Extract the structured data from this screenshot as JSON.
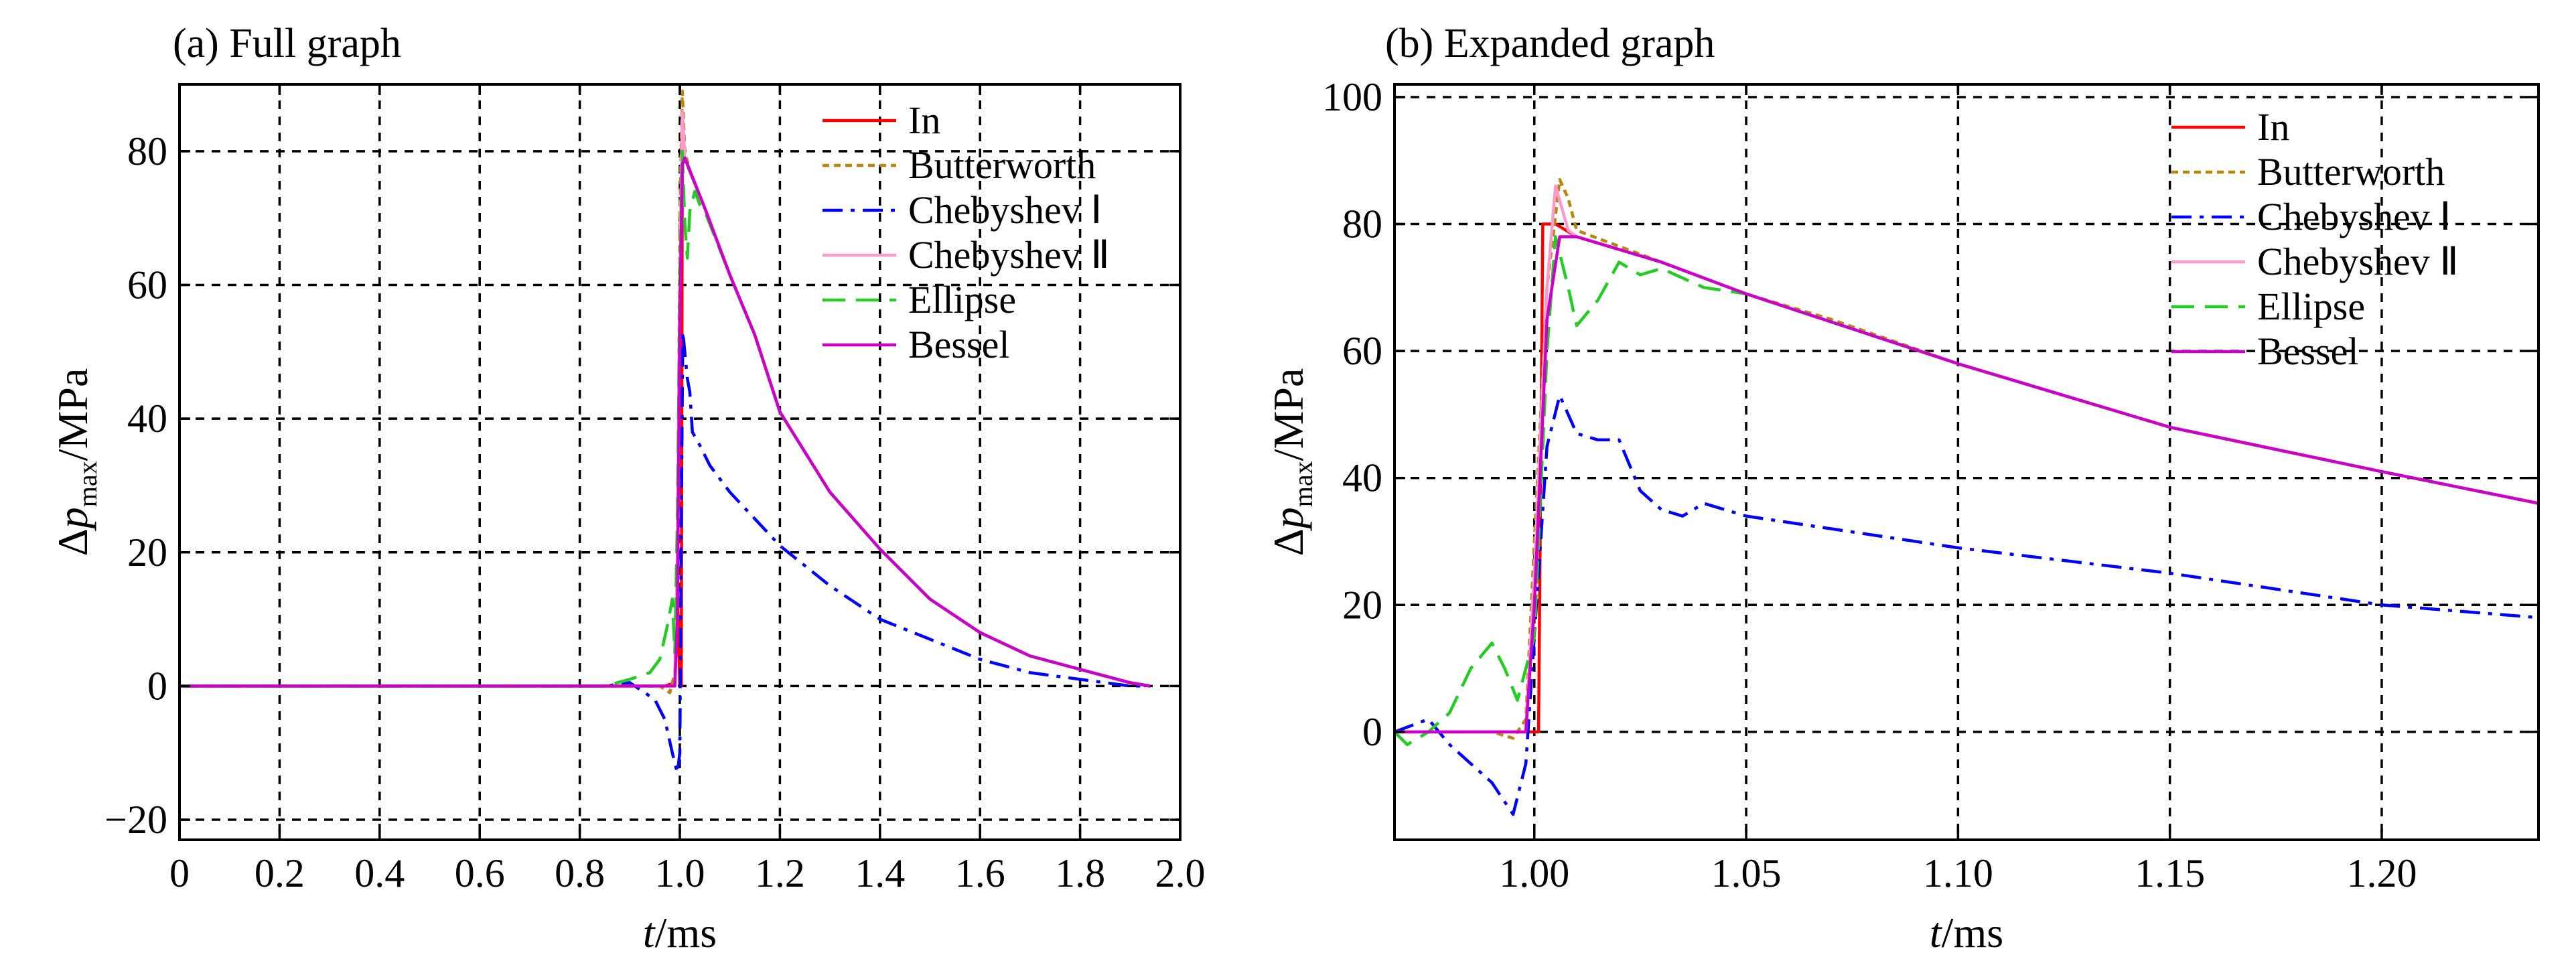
{
  "chart_data": [
    {
      "type": "line",
      "title": "(a) Full graph",
      "xlabel": "t/ms",
      "ylabel": "Δp_max/MPa",
      "xlim": [
        0,
        2.0
      ],
      "ylim": [
        -23,
        90
      ],
      "xticks": [
        0,
        0.2,
        0.4,
        0.6,
        0.8,
        1.0,
        1.2,
        1.4,
        1.6,
        1.8,
        2.0
      ],
      "xtick_labels": [
        "0",
        "0.2",
        "0.4",
        "0.6",
        "0.8",
        "1.0",
        "1.2",
        "1.4",
        "1.6",
        "1.8",
        "2.0"
      ],
      "yticks": [
        -20,
        0,
        20,
        40,
        60,
        80
      ],
      "ytick_labels": [
        "−20",
        "0",
        "20",
        "40",
        "60",
        "80"
      ],
      "grid": true,
      "legend_position": "top-right",
      "series": [
        {
          "name": "In",
          "color": "#ff0000",
          "dash": "solid",
          "points": [
            [
              0,
              0
            ],
            [
              0.9,
              0
            ],
            [
              0.97,
              0
            ],
            [
              0.99,
              0.5
            ],
            [
              0.995,
              15
            ],
            [
              1.0,
              0
            ],
            [
              1.003,
              0
            ],
            [
              1.005,
              80
            ],
            [
              1.02,
              77
            ],
            [
              1.05,
              71.5
            ],
            [
              1.1,
              61.5
            ],
            [
              1.15,
              52.5
            ],
            [
              1.2,
              41
            ],
            [
              1.3,
              29
            ],
            [
              1.4,
              20.5
            ],
            [
              1.5,
              13
            ],
            [
              1.6,
              8
            ],
            [
              1.7,
              4.5
            ],
            [
              1.8,
              2.5
            ],
            [
              1.9,
              0.5
            ],
            [
              1.94,
              0
            ]
          ]
        },
        {
          "name": "Butterworth",
          "color": "#b8860b",
          "dash": "dotted",
          "points": [
            [
              0,
              0
            ],
            [
              0.9,
              0
            ],
            [
              0.96,
              0
            ],
            [
              0.98,
              -1
            ],
            [
              0.99,
              2
            ],
            [
              0.995,
              10
            ],
            [
              1.0,
              70
            ],
            [
              1.005,
              89
            ],
            [
              1.01,
              80
            ],
            [
              1.02,
              77
            ],
            [
              1.05,
              71.5
            ],
            [
              1.1,
              61.5
            ],
            [
              1.15,
              52.5
            ],
            [
              1.2,
              41
            ],
            [
              1.3,
              29
            ],
            [
              1.4,
              20.5
            ],
            [
              1.5,
              13
            ],
            [
              1.6,
              8
            ],
            [
              1.7,
              4.5
            ],
            [
              1.8,
              2.5
            ],
            [
              1.9,
              0.5
            ],
            [
              1.94,
              0
            ]
          ]
        },
        {
          "name": "Chebyshev Ⅰ",
          "color": "#0000ff",
          "dash": "dashdot",
          "points": [
            [
              0,
              0
            ],
            [
              0.85,
              0
            ],
            [
              0.9,
              0.5
            ],
            [
              0.95,
              -2
            ],
            [
              0.97,
              -5
            ],
            [
              0.985,
              -10
            ],
            [
              0.995,
              -13
            ],
            [
              1.0,
              -10
            ],
            [
              1.003,
              25
            ],
            [
              1.006,
              53
            ],
            [
              1.015,
              46
            ],
            [
              1.02,
              44
            ],
            [
              1.025,
              38
            ],
            [
              1.04,
              36
            ],
            [
              1.06,
              33
            ],
            [
              1.1,
              29
            ],
            [
              1.15,
              25
            ],
            [
              1.2,
              21
            ],
            [
              1.3,
              15
            ],
            [
              1.4,
              10
            ],
            [
              1.5,
              7
            ],
            [
              1.6,
              4
            ],
            [
              1.7,
              2
            ],
            [
              1.8,
              1
            ],
            [
              1.9,
              0
            ],
            [
              1.94,
              0
            ]
          ]
        },
        {
          "name": "Chebyshev Ⅱ",
          "color": "#ff99cc",
          "dash": "solid",
          "points": [
            [
              0,
              0
            ],
            [
              0.95,
              0
            ],
            [
              0.99,
              0
            ],
            [
              0.995,
              20
            ],
            [
              1.0,
              60
            ],
            [
              1.005,
              86
            ],
            [
              1.01,
              79
            ],
            [
              1.05,
              71.5
            ],
            [
              1.1,
              61.5
            ],
            [
              1.15,
              52.5
            ],
            [
              1.2,
              41
            ],
            [
              1.3,
              29
            ],
            [
              1.4,
              20.5
            ],
            [
              1.5,
              13
            ],
            [
              1.6,
              8
            ],
            [
              1.7,
              4.5
            ],
            [
              1.8,
              2.5
            ],
            [
              1.9,
              0.5
            ],
            [
              1.94,
              0
            ]
          ]
        },
        {
          "name": "Ellipse",
          "color": "#22cc22",
          "dash": "longdash",
          "points": [
            [
              0,
              0
            ],
            [
              0.85,
              0
            ],
            [
              0.9,
              1
            ],
            [
              0.94,
              2
            ],
            [
              0.96,
              4
            ],
            [
              0.975,
              9
            ],
            [
              0.985,
              13
            ],
            [
              0.99,
              5
            ],
            [
              0.995,
              25
            ],
            [
              1.0,
              60
            ],
            [
              1.005,
              80
            ],
            [
              1.01,
              69
            ],
            [
              1.015,
              64
            ],
            [
              1.02,
              71
            ],
            [
              1.03,
              74
            ],
            [
              1.04,
              72
            ],
            [
              1.05,
              71
            ],
            [
              1.1,
              61.5
            ],
            [
              1.15,
              52.5
            ],
            [
              1.2,
              41
            ],
            [
              1.3,
              29
            ],
            [
              1.4,
              20.5
            ],
            [
              1.5,
              13
            ],
            [
              1.6,
              8
            ],
            [
              1.7,
              4.5
            ],
            [
              1.8,
              2.5
            ],
            [
              1.9,
              0.5
            ],
            [
              1.94,
              0
            ]
          ]
        },
        {
          "name": "Bessel",
          "color": "#cc00cc",
          "dash": "solid",
          "points": [
            [
              0,
              0
            ],
            [
              0.95,
              0
            ],
            [
              0.99,
              0
            ],
            [
              0.995,
              10
            ],
            [
              1.0,
              55
            ],
            [
              1.005,
              78
            ],
            [
              1.01,
              79
            ],
            [
              1.05,
              71.5
            ],
            [
              1.1,
              61.5
            ],
            [
              1.15,
              52.5
            ],
            [
              1.2,
              41
            ],
            [
              1.3,
              29
            ],
            [
              1.4,
              20.5
            ],
            [
              1.5,
              13
            ],
            [
              1.6,
              8
            ],
            [
              1.7,
              4.5
            ],
            [
              1.8,
              2.5
            ],
            [
              1.9,
              0.5
            ],
            [
              1.94,
              0
            ]
          ]
        }
      ]
    },
    {
      "type": "line",
      "title": "(b) Expanded graph",
      "xlabel": "t/ms",
      "ylabel": "Δp_max/MPa",
      "xlim": [
        0.967,
        1.237
      ],
      "ylim": [
        -17,
        102
      ],
      "xticks": [
        1.0,
        1.05,
        1.1,
        1.15,
        1.2
      ],
      "xtick_labels": [
        "1.00",
        "1.05",
        "1.10",
        "1.15",
        "1.20"
      ],
      "yticks": [
        0,
        20,
        40,
        60,
        80,
        100
      ],
      "ytick_labels": [
        "0",
        "20",
        "40",
        "60",
        "80",
        "100"
      ],
      "grid": true,
      "legend_position": "top-right",
      "series": [
        {
          "name": "In",
          "color": "#ff0000",
          "dash": "solid",
          "points": [
            [
              0.967,
              0
            ],
            [
              0.998,
              0
            ],
            [
              1.001,
              0
            ],
            [
              1.002,
              80
            ],
            [
              1.005,
              80
            ],
            [
              1.01,
              78
            ],
            [
              1.03,
              74
            ],
            [
              1.05,
              69
            ],
            [
              1.1,
              58
            ],
            [
              1.15,
              48
            ],
            [
              1.2,
              41
            ],
            [
              1.237,
              36
            ]
          ]
        },
        {
          "name": "Butterworth",
          "color": "#b8860b",
          "dash": "dotted",
          "points": [
            [
              0.967,
              0
            ],
            [
              0.98,
              0
            ],
            [
              0.99,
              0
            ],
            [
              0.995,
              -1
            ],
            [
              0.998,
              2
            ],
            [
              1.0,
              30
            ],
            [
              1.003,
              70
            ],
            [
              1.006,
              87
            ],
            [
              1.008,
              84
            ],
            [
              1.01,
              79
            ],
            [
              1.03,
              74
            ],
            [
              1.05,
              69
            ],
            [
              1.07,
              65
            ],
            [
              1.1,
              58
            ],
            [
              1.15,
              48
            ],
            [
              1.2,
              41
            ],
            [
              1.237,
              36
            ]
          ]
        },
        {
          "name": "Chebyshev Ⅰ",
          "color": "#0000ff",
          "dash": "dashdot",
          "points": [
            [
              0.967,
              0
            ],
            [
              0.975,
              2
            ],
            [
              0.98,
              -2
            ],
            [
              0.985,
              -5
            ],
            [
              0.99,
              -8
            ],
            [
              0.995,
              -13
            ],
            [
              0.998,
              -5
            ],
            [
              1.0,
              15
            ],
            [
              1.003,
              45
            ],
            [
              1.006,
              53
            ],
            [
              1.01,
              47
            ],
            [
              1.015,
              46
            ],
            [
              1.02,
              46
            ],
            [
              1.025,
              38
            ],
            [
              1.03,
              35
            ],
            [
              1.035,
              34
            ],
            [
              1.04,
              36
            ],
            [
              1.05,
              34
            ],
            [
              1.07,
              32
            ],
            [
              1.1,
              29
            ],
            [
              1.15,
              25
            ],
            [
              1.2,
              20
            ],
            [
              1.237,
              18
            ]
          ]
        },
        {
          "name": "Chebyshev Ⅱ",
          "color": "#ff99cc",
          "dash": "solid",
          "points": [
            [
              0.967,
              0
            ],
            [
              0.998,
              0
            ],
            [
              1.0,
              25
            ],
            [
              1.003,
              70
            ],
            [
              1.005,
              86
            ],
            [
              1.008,
              79
            ],
            [
              1.01,
              78
            ],
            [
              1.03,
              74
            ],
            [
              1.05,
              69
            ],
            [
              1.1,
              58
            ],
            [
              1.15,
              48
            ],
            [
              1.2,
              41
            ],
            [
              1.237,
              36
            ]
          ]
        },
        {
          "name": "Ellipse",
          "color": "#22cc22",
          "dash": "longdash",
          "points": [
            [
              0.967,
              0
            ],
            [
              0.97,
              -2
            ],
            [
              0.975,
              0
            ],
            [
              0.98,
              3
            ],
            [
              0.985,
              10
            ],
            [
              0.99,
              14
            ],
            [
              0.993,
              10
            ],
            [
              0.996,
              5
            ],
            [
              1.0,
              15
            ],
            [
              1.003,
              60
            ],
            [
              1.005,
              78
            ],
            [
              1.008,
              70
            ],
            [
              1.01,
              64
            ],
            [
              1.015,
              68
            ],
            [
              1.02,
              74
            ],
            [
              1.025,
              72
            ],
            [
              1.03,
              73
            ],
            [
              1.04,
              70
            ],
            [
              1.05,
              69
            ],
            [
              1.1,
              58
            ],
            [
              1.15,
              48
            ],
            [
              1.2,
              41
            ],
            [
              1.237,
              36
            ]
          ]
        },
        {
          "name": "Bessel",
          "color": "#cc00cc",
          "dash": "solid",
          "points": [
            [
              0.967,
              0
            ],
            [
              0.998,
              0
            ],
            [
              1.0,
              20
            ],
            [
              1.003,
              65
            ],
            [
              1.006,
              78
            ],
            [
              1.01,
              78
            ],
            [
              1.03,
              74
            ],
            [
              1.05,
              69
            ],
            [
              1.1,
              58
            ],
            [
              1.15,
              48
            ],
            [
              1.2,
              41
            ],
            [
              1.237,
              36
            ]
          ]
        }
      ]
    }
  ]
}
